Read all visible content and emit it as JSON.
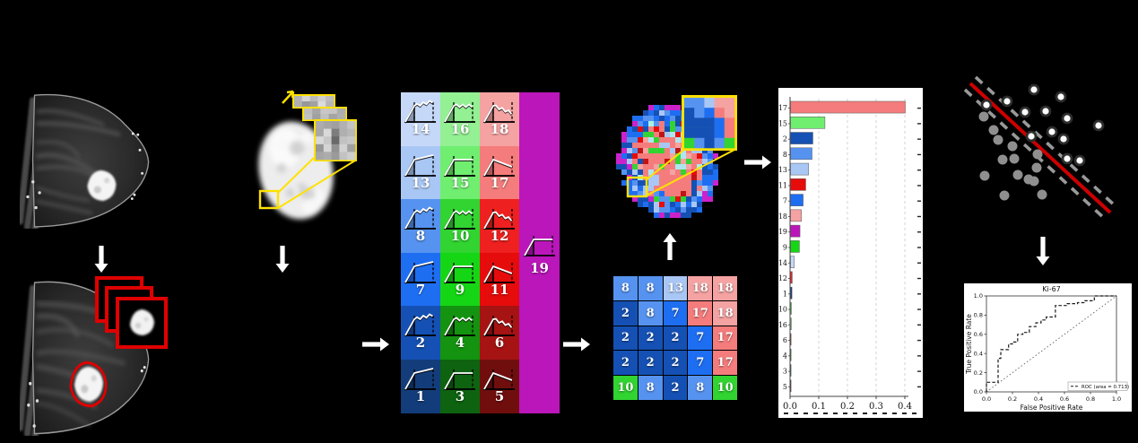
{
  "pattern_legend": {
    "rows": [
      [
        "14",
        "16",
        "18"
      ],
      [
        "13",
        "15",
        "17"
      ],
      [
        "8",
        "10",
        "12"
      ],
      [
        "7",
        "9",
        "11"
      ],
      [
        "2",
        "4",
        "6"
      ],
      [
        "1",
        "3",
        "5"
      ]
    ],
    "wavy_rows": [
      true,
      false,
      true,
      false,
      true,
      false
    ],
    "curve_by_col": [
      "persistent-rise",
      "plateau",
      "washout"
    ],
    "side_cell": "19"
  },
  "color_map": {
    "1": "#133d7a",
    "2": "#1551b4",
    "3": "#0e6310",
    "4": "#13930f",
    "5": "#700e0e",
    "6": "#a61313",
    "7": "#1e6ef2",
    "8": "#5693f0",
    "9": "#15d615",
    "10": "#31d431",
    "11": "#e60c0c",
    "12": "#ee2020",
    "13": "#a9c7f5",
    "14": "#c5d8f8",
    "15": "#70ee70",
    "16": "#93f093",
    "17": "#f57c7c",
    "18": "#f5a2a2",
    "19": "#ba16ba"
  },
  "patch_matrix": {
    "values": [
      [
        "8",
        "8",
        "13",
        "18",
        "18"
      ],
      [
        "2",
        "8",
        "7",
        "17",
        "18"
      ],
      [
        "2",
        "2",
        "2",
        "7",
        "17"
      ],
      [
        "2",
        "2",
        "2",
        "7",
        "17"
      ],
      [
        "10",
        "8",
        "2",
        "8",
        "10"
      ]
    ]
  },
  "chart_data": [
    {
      "type": "bar",
      "name": "pattern-frequency-histogram",
      "orientation": "horizontal",
      "categories": [
        "17",
        "15",
        "2",
        "8",
        "13",
        "11",
        "7",
        "18",
        "19",
        "9",
        "14",
        "12",
        "1",
        "10",
        "16",
        "6",
        "4",
        "3",
        "5"
      ],
      "values": [
        0.4,
        0.12,
        0.078,
        0.075,
        0.063,
        0.053,
        0.044,
        0.038,
        0.033,
        0.031,
        0.013,
        0.006,
        0.005,
        0.003,
        0.003,
        0.002,
        0.002,
        0.001,
        0.001
      ],
      "xticks": [
        "0.0",
        "0.1",
        "0.2",
        "0.3",
        "0.4"
      ],
      "xlim": [
        0.0,
        0.42
      ],
      "grid": "dashed-vertical",
      "title": "",
      "xlabel": "",
      "ylabel": ""
    },
    {
      "type": "line",
      "name": "roc-curve",
      "title": "Ki-67",
      "xlabel": "False Positive Rate",
      "ylabel": "True Positive Rate",
      "xticks": [
        "0.0",
        "0.2",
        "0.4",
        "0.6",
        "0.8",
        "1.0"
      ],
      "yticks": [
        "0.0",
        "0.2",
        "0.4",
        "0.6",
        "0.8",
        "1.0"
      ],
      "xlim": [
        0,
        1
      ],
      "ylim": [
        0,
        1
      ],
      "legend": [
        "ROC (area = 0.713)"
      ],
      "legend_position": "lower right",
      "series": [
        {
          "name": "ROC",
          "style": "dashed-step",
          "points": [
            [
              0,
              0
            ],
            [
              0,
              0.1
            ],
            [
              0.09,
              0.1
            ],
            [
              0.09,
              0.35
            ],
            [
              0.11,
              0.35
            ],
            [
              0.11,
              0.44
            ],
            [
              0.17,
              0.44
            ],
            [
              0.17,
              0.5
            ],
            [
              0.2,
              0.5
            ],
            [
              0.2,
              0.52
            ],
            [
              0.24,
              0.52
            ],
            [
              0.24,
              0.6
            ],
            [
              0.28,
              0.6
            ],
            [
              0.28,
              0.62
            ],
            [
              0.33,
              0.62
            ],
            [
              0.33,
              0.68
            ],
            [
              0.38,
              0.68
            ],
            [
              0.38,
              0.72
            ],
            [
              0.42,
              0.72
            ],
            [
              0.42,
              0.75
            ],
            [
              0.46,
              0.75
            ],
            [
              0.46,
              0.78
            ],
            [
              0.53,
              0.78
            ],
            [
              0.53,
              0.9
            ],
            [
              0.57,
              0.9
            ],
            [
              0.62,
              0.9
            ],
            [
              0.62,
              0.92
            ],
            [
              0.7,
              0.92
            ],
            [
              0.7,
              0.93
            ],
            [
              0.75,
              0.93
            ],
            [
              0.75,
              0.95
            ],
            [
              0.83,
              0.95
            ],
            [
              0.83,
              1.0
            ],
            [
              1.0,
              1.0
            ]
          ]
        },
        {
          "name": "chance-diagonal",
          "style": "dotted",
          "points": [
            [
              0,
              0
            ],
            [
              1,
              1
            ]
          ]
        }
      ]
    },
    {
      "type": "scatter",
      "name": "classifier-illustration",
      "units": "px-local",
      "series": [
        {
          "name": "white-points",
          "marker": "white-circle",
          "points": [
            [
              45,
              47
            ],
            [
              68,
              43
            ],
            [
              98,
              30
            ],
            [
              128,
              38
            ],
            [
              88,
              55
            ],
            [
              111,
              54
            ],
            [
              135,
              62
            ],
            [
              170,
              70
            ],
            [
              95,
              82
            ],
            [
              118,
              77
            ],
            [
              131,
              85
            ],
            [
              135,
              107
            ],
            [
              149,
              109
            ]
          ]
        },
        {
          "name": "gray-points",
          "marker": "gray-circle",
          "points": [
            [
              42,
              60
            ],
            [
              53,
              75
            ],
            [
              58,
              86
            ],
            [
              74,
              93
            ],
            [
              63,
              108
            ],
            [
              76,
              107
            ],
            [
              102,
              102
            ],
            [
              101,
              117
            ],
            [
              80,
              125
            ],
            [
              92,
              130
            ],
            [
              98,
              132
            ],
            [
              43,
              126
            ],
            [
              65,
              148
            ],
            [
              107,
              147
            ]
          ]
        }
      ],
      "lines": [
        {
          "name": "decision-boundary",
          "style": "solid",
          "color": "#cc0000",
          "from": [
            27,
            23
          ],
          "to": [
            183,
            167
          ]
        },
        {
          "name": "margin-upper",
          "style": "dashed",
          "color": "#999999",
          "from": [
            33,
            16
          ],
          "to": [
            189,
            160
          ]
        },
        {
          "name": "margin-lower",
          "style": "dashed",
          "color": "#999999",
          "from": [
            21,
            30
          ],
          "to": [
            177,
            174
          ]
        }
      ]
    }
  ],
  "annotation_colors": {
    "flow_arrow": "#ffffff",
    "highlight_box": "#ffe100",
    "roi_box": "#e00000",
    "kinetic_map_edge": "#cc22cc"
  }
}
